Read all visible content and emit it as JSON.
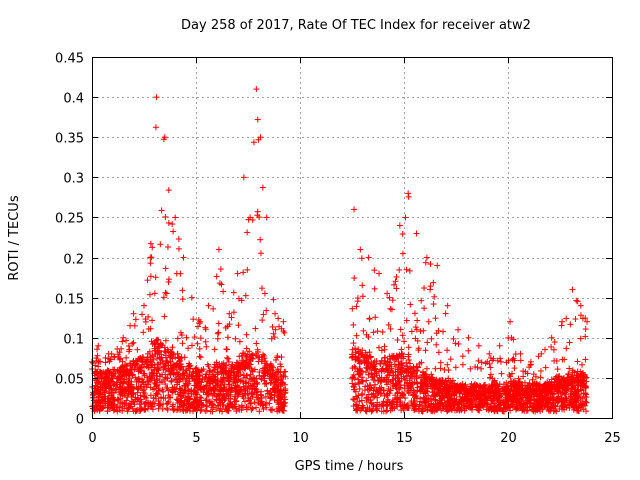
{
  "chart_data": {
    "type": "scatter",
    "title": "Day 258 of 2017, Rate Of TEC Index for receiver atw2",
    "xlabel": "GPS time / hours",
    "ylabel": "ROTI / TECUs",
    "xlim": [
      0,
      25
    ],
    "ylim": [
      0,
      0.45
    ],
    "x_ticks": [
      "0",
      "5",
      "10",
      "15",
      "20",
      "25"
    ],
    "y_ticks": [
      "0",
      "0.05",
      "0.1",
      "0.15",
      "0.2",
      "0.25",
      "0.3",
      "0.35",
      "0.4",
      "0.45"
    ],
    "grid": true,
    "marker": "+",
    "color": "#ff0000",
    "envelope": {
      "x": [
        0.0,
        0.3,
        0.8,
        1.5,
        2.0,
        2.5,
        2.8,
        3.1,
        3.5,
        4.0,
        4.4,
        4.8,
        5.2,
        5.6,
        6.1,
        6.6,
        7.0,
        7.3,
        7.6,
        7.9,
        8.1,
        8.4,
        8.8,
        9.2,
        12.6,
        12.9,
        13.3,
        13.8,
        14.3,
        14.8,
        15.2,
        15.6,
        16.1,
        16.6,
        17.1,
        17.6,
        18.1,
        18.6,
        19.1,
        19.6,
        20.1,
        20.6,
        21.1,
        21.6,
        22.1,
        22.6,
        23.1,
        23.5,
        23.8
      ],
      "y_peak": [
        0.07,
        0.09,
        0.08,
        0.1,
        0.13,
        0.14,
        0.2,
        0.4,
        0.35,
        0.25,
        0.2,
        0.15,
        0.12,
        0.14,
        0.21,
        0.13,
        0.18,
        0.3,
        0.25,
        0.41,
        0.35,
        0.25,
        0.13,
        0.12,
        0.26,
        0.21,
        0.2,
        0.18,
        0.15,
        0.24,
        0.28,
        0.23,
        0.2,
        0.19,
        0.14,
        0.11,
        0.1,
        0.09,
        0.08,
        0.09,
        0.12,
        0.08,
        0.07,
        0.08,
        0.1,
        0.12,
        0.16,
        0.14,
        0.12
      ],
      "y_typical": [
        0.04,
        0.05,
        0.045,
        0.05,
        0.055,
        0.06,
        0.07,
        0.08,
        0.07,
        0.065,
        0.06,
        0.05,
        0.045,
        0.05,
        0.055,
        0.05,
        0.055,
        0.065,
        0.06,
        0.07,
        0.065,
        0.06,
        0.05,
        0.04,
        0.07,
        0.07,
        0.065,
        0.06,
        0.06,
        0.065,
        0.06,
        0.05,
        0.04,
        0.035,
        0.035,
        0.03,
        0.03,
        0.03,
        0.03,
        0.03,
        0.035,
        0.03,
        0.03,
        0.03,
        0.035,
        0.04,
        0.045,
        0.045,
        0.04
      ]
    },
    "data_gap": [
      9.3,
      12.5
    ]
  }
}
